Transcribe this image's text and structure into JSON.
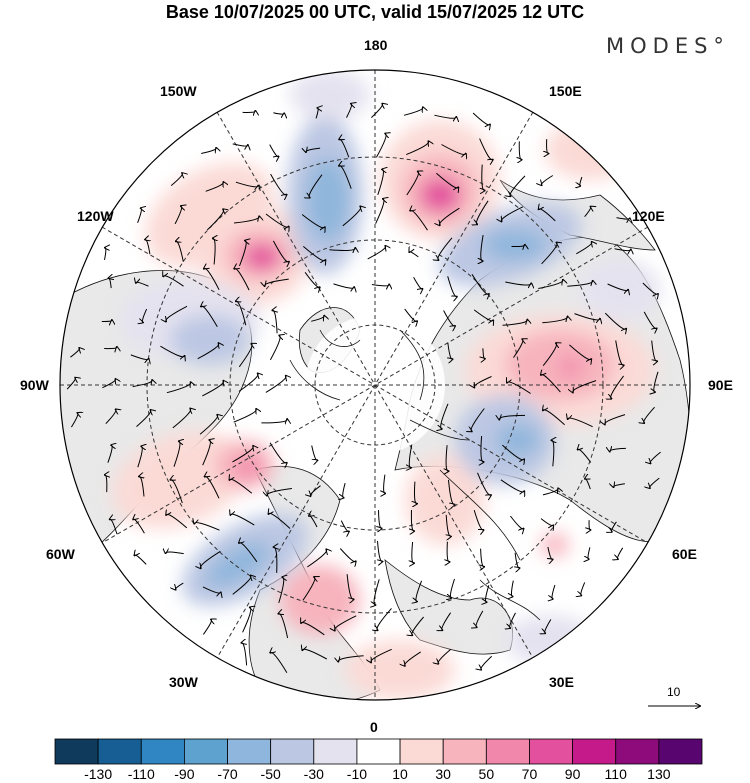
{
  "header": {
    "title": "Base 10/07/2025 00 UTC, valid 15/07/2025 12 UTC",
    "logo": "MODES°"
  },
  "map_labels": {
    "lon_180": "180",
    "lon_0": "0",
    "lon_150w": "150W",
    "lon_150e": "150E",
    "lon_120w": "120W",
    "lon_120e": "120E",
    "lon_90w": "90W",
    "lon_90e": "90E",
    "lon_60w": "60W",
    "lon_60e": "60E",
    "lon_30w": "30W",
    "lon_30e": "30E"
  },
  "vector_key": {
    "label": "10"
  },
  "colors": {
    "neg": [
      "#0f3a5c",
      "#165e93",
      "#2f86c2",
      "#5ea3cf",
      "#8fb6dc",
      "#bcc7e3",
      "#e4e2ef"
    ],
    "zero": "#ffffff",
    "pos": [
      "#fbdad6",
      "#f7b4bd",
      "#f188ac",
      "#e3509d",
      "#c51b8a",
      "#8e0b7c",
      "#58056f"
    ]
  },
  "colorbar": {
    "ticks": [
      "-130",
      "-110",
      "-90",
      "-70",
      "-50",
      "-30",
      "-10",
      "10",
      "30",
      "50",
      "70",
      "90",
      "110",
      "130"
    ]
  }
}
